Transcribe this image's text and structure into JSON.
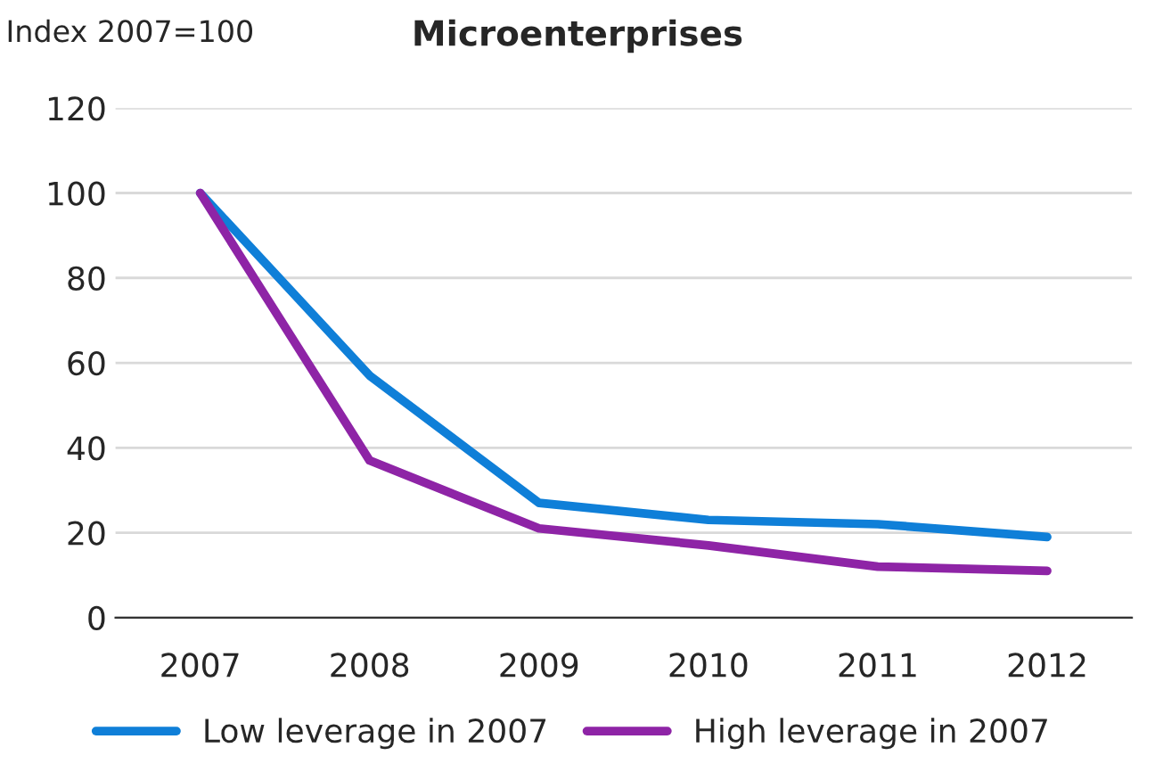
{
  "chart_data": {
    "type": "line",
    "title": "Microenterprises",
    "ylabel": "Index 2007=100",
    "categories": [
      "2007",
      "2008",
      "2009",
      "2010",
      "2011",
      "2012"
    ],
    "series": [
      {
        "name": "Low leverage in 2007",
        "color": "#0f7fd8",
        "values": [
          100,
          57,
          27,
          23,
          22,
          19
        ]
      },
      {
        "name": "High leverage in 2007",
        "color": "#8e24a6",
        "values": [
          100,
          37,
          21,
          17,
          12,
          11
        ]
      }
    ],
    "ylim": [
      0,
      120
    ],
    "yticks": [
      0,
      20,
      40,
      60,
      80,
      100,
      120
    ],
    "grid": "y",
    "legend": "bottom"
  }
}
